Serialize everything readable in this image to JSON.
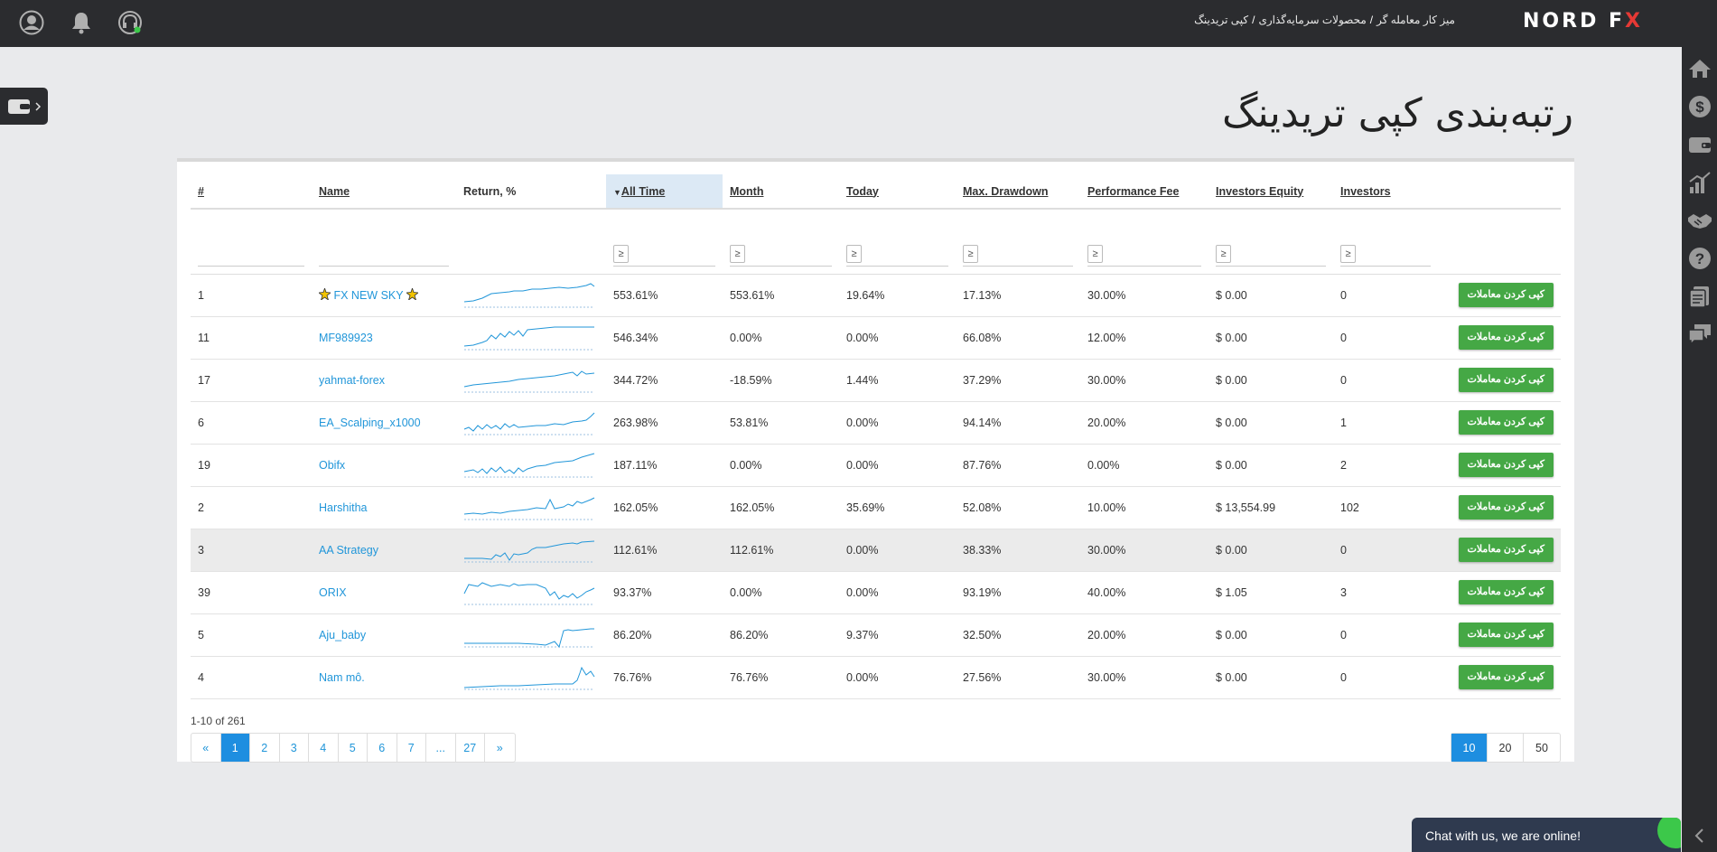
{
  "topbar": {
    "breadcrumb": [
      "میز کار معامله گر",
      "محصولات سرمایه‌گذاری",
      "کپی تریدینگ"
    ],
    "logo_main": "NORD F",
    "logo_x": "X"
  },
  "page": {
    "title": "رتبه‌بندی کپی تریدینگ"
  },
  "table": {
    "headers": {
      "num": "#",
      "name": "Name",
      "return": "Return, %",
      "all_time": "All Time",
      "month": "Month",
      "today": "Today",
      "max_dd": "Max. Drawdown",
      "perf_fee": "Performance Fee",
      "inv_equity": "Investors Equity",
      "investors": "Investors"
    },
    "filter_symbol": "≥",
    "copy_label": "کپی کردن معاملات",
    "rows": [
      {
        "num": "1",
        "name": "FX NEW SKY",
        "all_time": "553.61%",
        "month": "553.61%",
        "today": "19.64%",
        "max_dd": "17.13%",
        "fee": "30.00%",
        "equity": "$ 0.00",
        "investors": "0"
      },
      {
        "num": "11",
        "name": "MF989923",
        "all_time": "546.34%",
        "month": "0.00%",
        "today": "0.00%",
        "max_dd": "66.08%",
        "fee": "12.00%",
        "equity": "$ 0.00",
        "investors": "0"
      },
      {
        "num": "17",
        "name": "yahmat-forex",
        "all_time": "344.72%",
        "month": "-18.59%",
        "today": "1.44%",
        "max_dd": "37.29%",
        "fee": "30.00%",
        "equity": "$ 0.00",
        "investors": "0"
      },
      {
        "num": "6",
        "name": "EA_Scalping_x1000",
        "all_time": "263.98%",
        "month": "53.81%",
        "today": "0.00%",
        "max_dd": "94.14%",
        "fee": "20.00%",
        "equity": "$ 0.00",
        "investors": "1"
      },
      {
        "num": "19",
        "name": "Obifx",
        "all_time": "187.11%",
        "month": "0.00%",
        "today": "0.00%",
        "max_dd": "87.76%",
        "fee": "0.00%",
        "equity": "$ 0.00",
        "investors": "2"
      },
      {
        "num": "2",
        "name": "Harshitha",
        "all_time": "162.05%",
        "month": "162.05%",
        "today": "35.69%",
        "max_dd": "52.08%",
        "fee": "10.00%",
        "equity": "$ 13,554.99",
        "investors": "102"
      },
      {
        "num": "3",
        "name": "AA Strategy",
        "all_time": "112.61%",
        "month": "112.61%",
        "today": "0.00%",
        "max_dd": "38.33%",
        "fee": "30.00%",
        "equity": "$ 0.00",
        "investors": "0"
      },
      {
        "num": "39",
        "name": "ORIX",
        "all_time": "93.37%",
        "month": "0.00%",
        "today": "0.00%",
        "max_dd": "93.19%",
        "fee": "40.00%",
        "equity": "$ 1.05",
        "investors": "3"
      },
      {
        "num": "5",
        "name": "Aju_baby",
        "all_time": "86.20%",
        "month": "86.20%",
        "today": "9.37%",
        "max_dd": "32.50%",
        "fee": "20.00%",
        "equity": "$ 0.00",
        "investors": "0"
      },
      {
        "num": "4",
        "name": "Nam mô.",
        "all_time": "76.76%",
        "month": "76.76%",
        "today": "0.00%",
        "max_dd": "27.56%",
        "fee": "30.00%",
        "equity": "$ 0.00",
        "investors": "0"
      }
    ]
  },
  "pager": {
    "info": "1-10 of 261",
    "pages": [
      "«",
      "1",
      "2",
      "3",
      "4",
      "5",
      "6",
      "7",
      "...",
      "27",
      "»"
    ],
    "current": "1",
    "sizes": [
      "10",
      "20",
      "50"
    ],
    "current_size": "10"
  },
  "chat": {
    "label": "Chat with us, we are online!"
  },
  "colors": {
    "accent": "#1e8ee0",
    "copy_button": "#45a845",
    "link": "#2196d9",
    "dark": "#2b2c2f"
  }
}
